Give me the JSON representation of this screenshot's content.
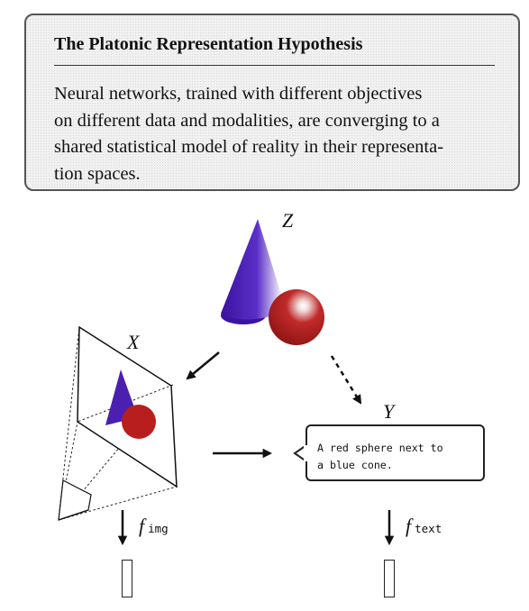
{
  "hypothesis": {
    "title": "The Platonic Representation Hypothesis",
    "body_lines": [
      "Neural networks, trained with different objectives",
      "on different data and modalities, are converging to a",
      "shared statistical model of reality in their representa-",
      "tion spaces."
    ]
  },
  "diagram": {
    "z_label": "Z",
    "x_label": "X",
    "y_label": "Y",
    "f_img": {
      "symbol": "f",
      "subscript": "img"
    },
    "f_text": {
      "symbol": "f",
      "subscript": "text"
    },
    "caption_lines": [
      "A red sphere next to",
      "a blue cone."
    ],
    "colors": {
      "cone_blue": "#4b1fb0",
      "sphere_red": "#b81e1e",
      "stroke": "#111111",
      "box_background": "#f1f1f1"
    }
  }
}
